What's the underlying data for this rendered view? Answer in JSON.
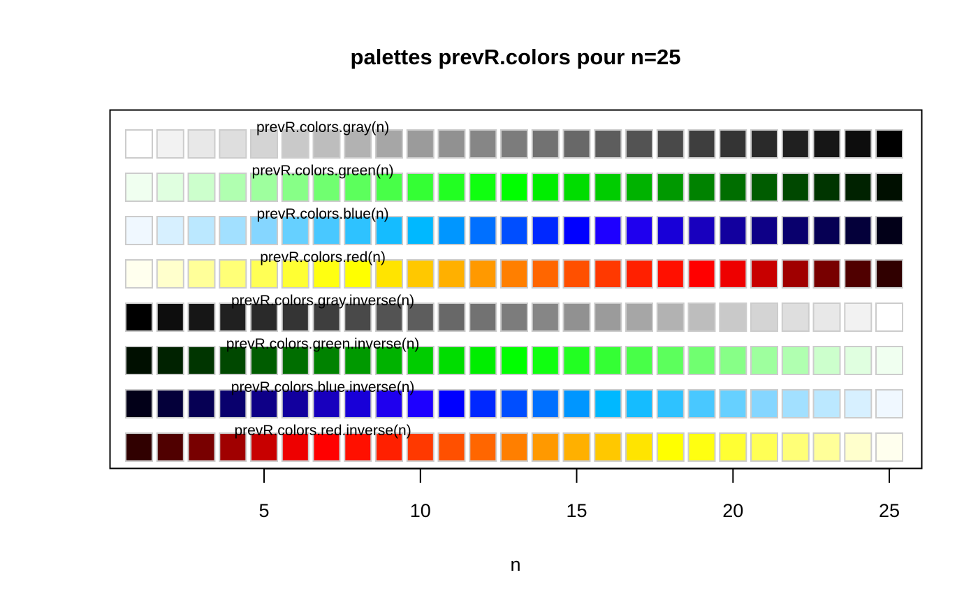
{
  "chart_data": {
    "type": "heatmap",
    "title": "palettes prevR.colors pour n=25",
    "xlabel": "n",
    "ylabel": "",
    "xlim": [
      0.5,
      25.5
    ],
    "x": [
      1,
      2,
      3,
      4,
      5,
      6,
      7,
      8,
      9,
      10,
      11,
      12,
      13,
      14,
      15,
      16,
      17,
      18,
      19,
      20,
      21,
      22,
      23,
      24,
      25
    ],
    "x_ticks": [
      5,
      10,
      15,
      20,
      25
    ],
    "cell_border_color": "#CCCCCC",
    "grid": false,
    "legend": "none",
    "series": [
      {
        "name": "prevR.colors.gray(n)",
        "colors": [
          "#FFFFFF",
          "#F2F2F2",
          "#E8E8E8",
          "#DEDEDE",
          "#D4D4D4",
          "#C9C9C9",
          "#BDBDBD",
          "#B2B2B2",
          "#A6A6A6",
          "#9B9B9B",
          "#919191",
          "#868686",
          "#7C7C7C",
          "#727272",
          "#686868",
          "#5D5D5D",
          "#535353",
          "#494949",
          "#3E3E3E",
          "#343434",
          "#2A2A2A",
          "#202020",
          "#161616",
          "#0D0D0D",
          "#000000"
        ]
      },
      {
        "name": "prevR.colors.green(n)",
        "colors": [
          "#F0FFF0",
          "#E0FFE0",
          "#CCFFCC",
          "#B0FFB0",
          "#9EFF9E",
          "#87FF87",
          "#70FF70",
          "#5CFF5C",
          "#48FF48",
          "#34FF34",
          "#22FF22",
          "#10FF10",
          "#00FF00",
          "#00EE00",
          "#00DD00",
          "#00CC00",
          "#00B200",
          "#009900",
          "#008200",
          "#006E00",
          "#005C00",
          "#004800",
          "#003500",
          "#002200",
          "#000F00"
        ]
      },
      {
        "name": "prevR.colors.blue(n)",
        "colors": [
          "#F0F8FF",
          "#D7F0FF",
          "#BBE8FF",
          "#A2E0FF",
          "#85D6FF",
          "#66D0FF",
          "#49C8FF",
          "#2EC2FF",
          "#15BCFF",
          "#00B8FF",
          "#0096FF",
          "#0070FF",
          "#004EFF",
          "#0028FF",
          "#0000FF",
          "#1E00FF",
          "#1F00EE",
          "#1800D8",
          "#1800BE",
          "#12009E",
          "#0E0087",
          "#09006D",
          "#060054",
          "#04003A",
          "#020018"
        ]
      },
      {
        "name": "prevR.colors.red(n)",
        "colors": [
          "#FFFFEE",
          "#FFFFCC",
          "#FFFF99",
          "#FFFF77",
          "#FFFF55",
          "#FFFF33",
          "#FFFF11",
          "#FFFF00",
          "#FFE400",
          "#FFC800",
          "#FFB000",
          "#FF9900",
          "#FF7F00",
          "#FF6600",
          "#FF5000",
          "#FF3900",
          "#FF2000",
          "#FF1000",
          "#FF0000",
          "#EE0000",
          "#C80000",
          "#A00000",
          "#780000",
          "#500000",
          "#300000"
        ]
      },
      {
        "name": "prevR.colors.gray.inverse(n)",
        "colors": [
          "#000000",
          "#0D0D0D",
          "#161616",
          "#202020",
          "#2A2A2A",
          "#343434",
          "#3E3E3E",
          "#494949",
          "#535353",
          "#5D5D5D",
          "#686868",
          "#727272",
          "#7C7C7C",
          "#868686",
          "#919191",
          "#9B9B9B",
          "#A6A6A6",
          "#B2B2B2",
          "#BDBDBD",
          "#C9C9C9",
          "#D4D4D4",
          "#DEDEDE",
          "#E8E8E8",
          "#F2F2F2",
          "#FFFFFF"
        ]
      },
      {
        "name": "prevR.colors.green.inverse(n)",
        "colors": [
          "#000F00",
          "#002200",
          "#003500",
          "#004800",
          "#005C00",
          "#006E00",
          "#008200",
          "#009900",
          "#00B200",
          "#00CC00",
          "#00DD00",
          "#00EE00",
          "#00FF00",
          "#10FF10",
          "#22FF22",
          "#34FF34",
          "#48FF48",
          "#5CFF5C",
          "#70FF70",
          "#87FF87",
          "#9EFF9E",
          "#B0FFB0",
          "#CCFFCC",
          "#E0FFE0",
          "#F0FFF0"
        ]
      },
      {
        "name": "prevR.colors.blue.inverse(n)",
        "colors": [
          "#020018",
          "#04003A",
          "#060054",
          "#09006D",
          "#0E0087",
          "#12009E",
          "#1800BE",
          "#1800D8",
          "#1F00EE",
          "#1E00FF",
          "#0000FF",
          "#0028FF",
          "#004EFF",
          "#0070FF",
          "#0096FF",
          "#00B8FF",
          "#15BCFF",
          "#2EC2FF",
          "#49C8FF",
          "#66D0FF",
          "#85D6FF",
          "#A2E0FF",
          "#BBE8FF",
          "#D7F0FF",
          "#F0F8FF"
        ]
      },
      {
        "name": "prevR.colors.red.inverse(n)",
        "colors": [
          "#300000",
          "#500000",
          "#780000",
          "#A00000",
          "#C80000",
          "#EE0000",
          "#FF0000",
          "#FF1000",
          "#FF2000",
          "#FF3900",
          "#FF5000",
          "#FF6600",
          "#FF7F00",
          "#FF9900",
          "#FFB000",
          "#FFC800",
          "#FFE400",
          "#FFFF00",
          "#FFFF11",
          "#FFFF33",
          "#FFFF55",
          "#FFFF77",
          "#FFFF99",
          "#FFFFCC",
          "#FFFFEE"
        ]
      }
    ]
  }
}
